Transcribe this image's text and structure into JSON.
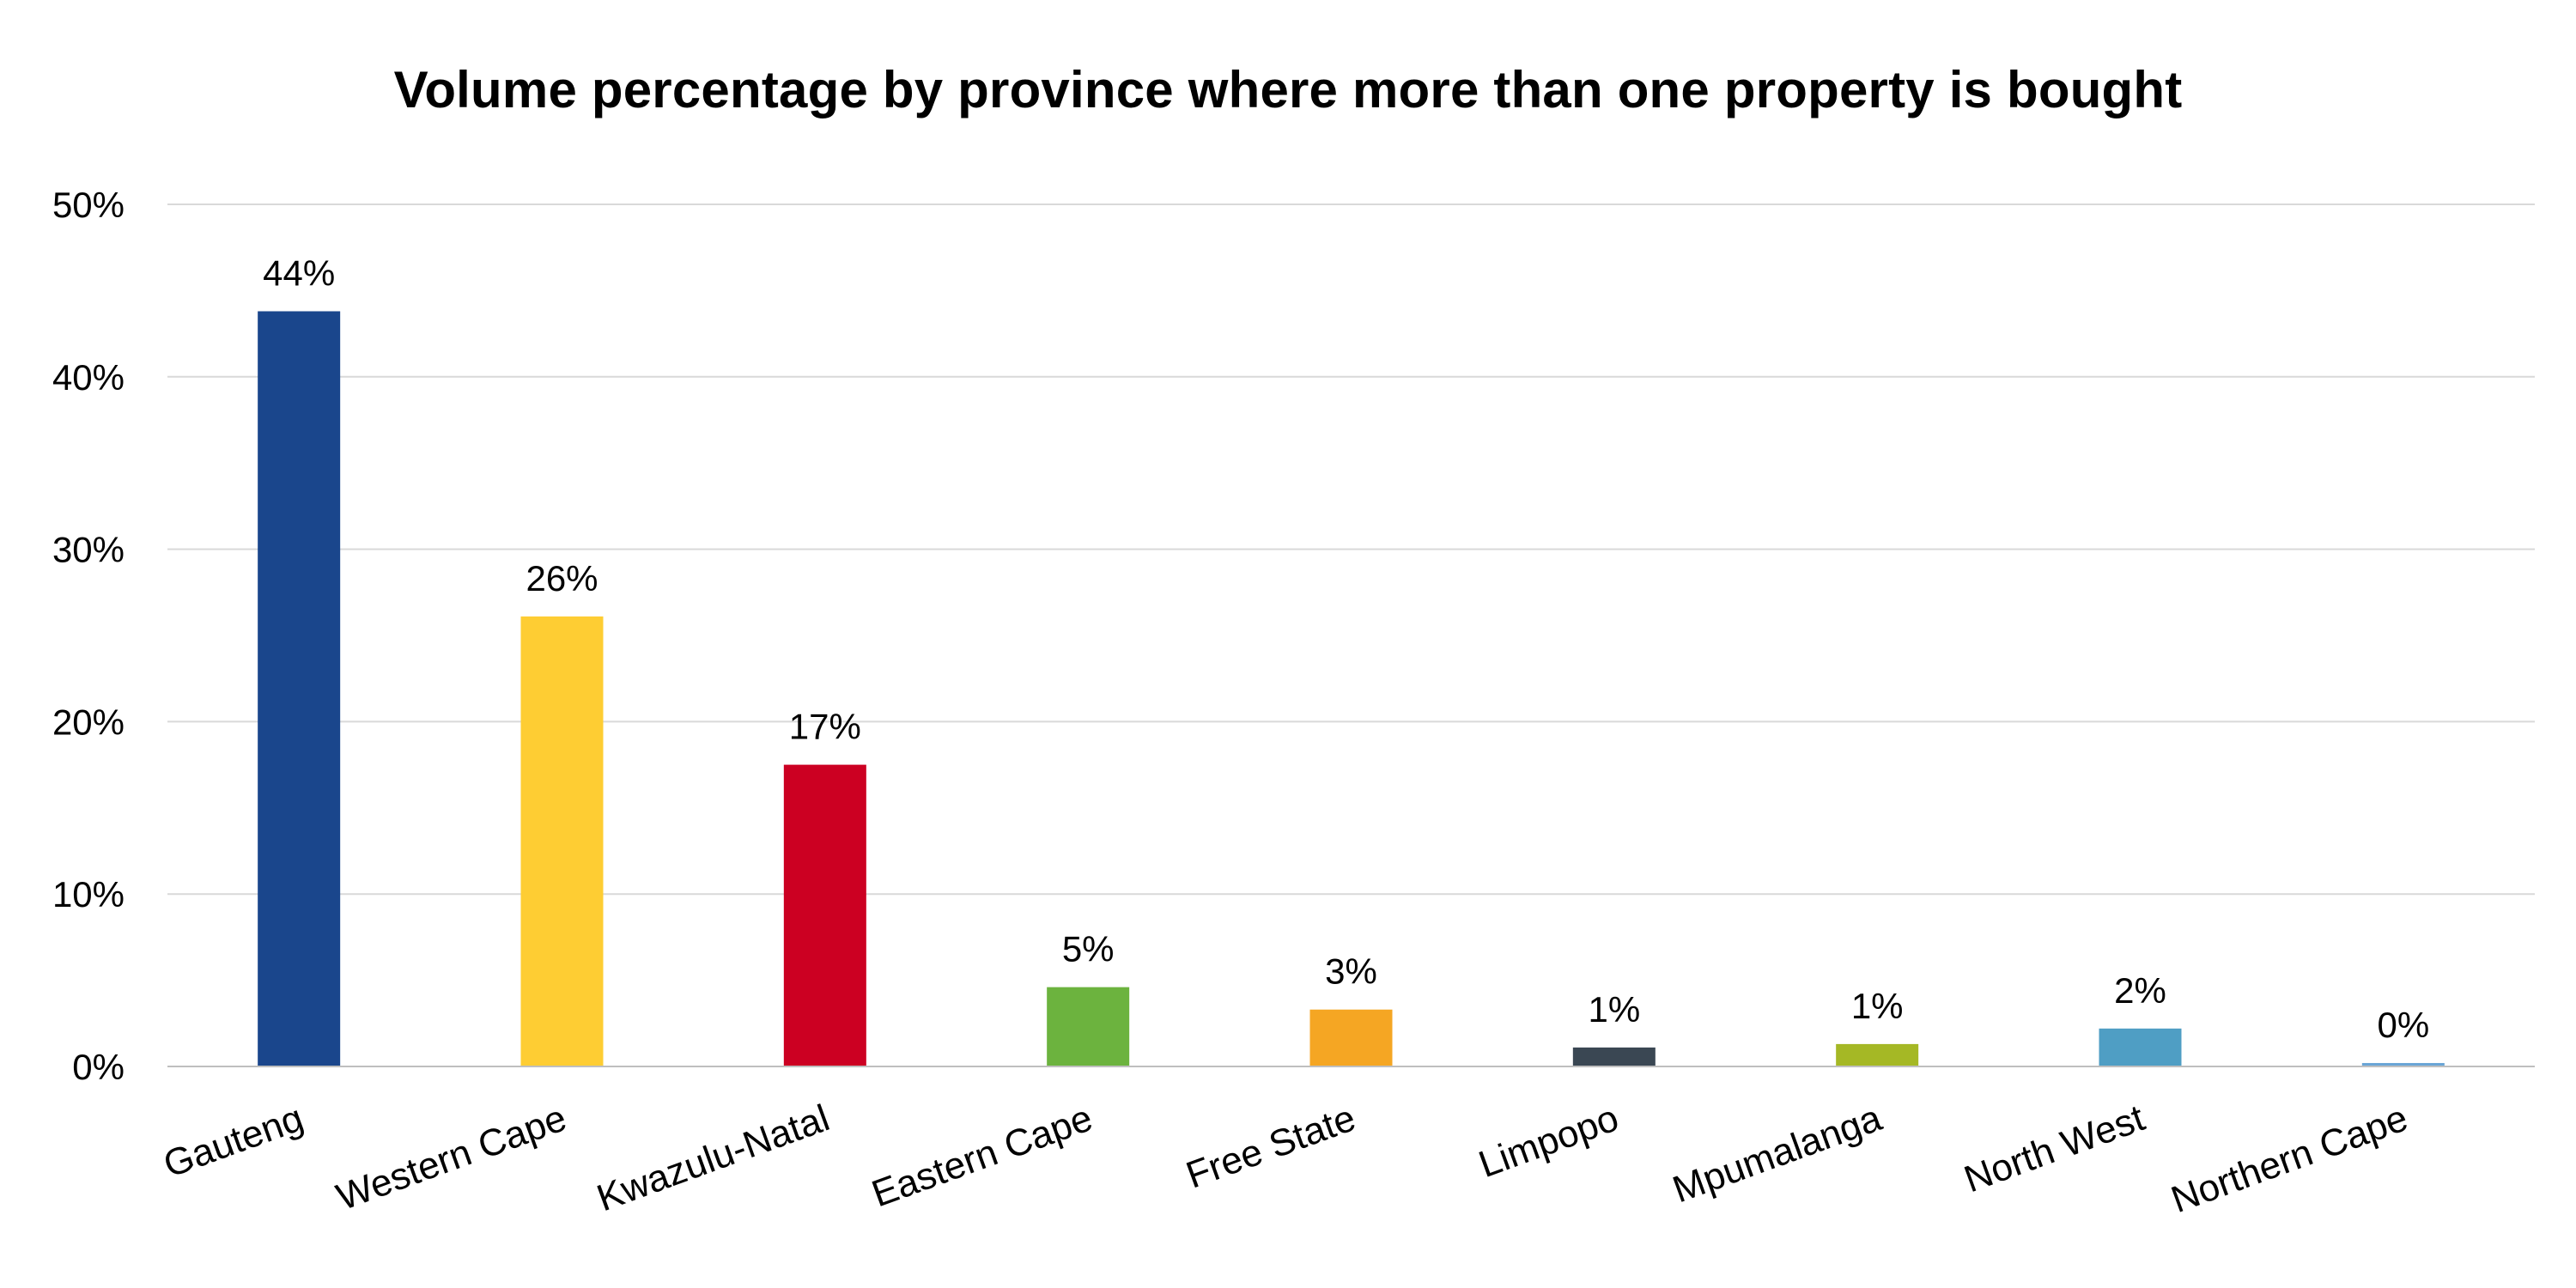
{
  "chart_data": {
    "type": "bar",
    "title": "Volume percentage by province where more than one property is bought",
    "xlabel": "",
    "ylabel": "",
    "ylim": [
      0,
      50
    ],
    "y_ticks": [
      0,
      10,
      20,
      30,
      40,
      50
    ],
    "y_tick_labels": [
      "0%",
      "10%",
      "20%",
      "30%",
      "40%",
      "50%"
    ],
    "grid": true,
    "legend": "none",
    "categories": [
      "Gauteng",
      "Western Cape",
      "Kwazulu-Natal",
      "Eastern Cape",
      "Free State",
      "Limpopo",
      "Mpumalanga",
      "North West",
      "Northern Cape"
    ],
    "values": [
      43.8,
      26.1,
      17.5,
      4.6,
      3.3,
      1.1,
      1.3,
      2.2,
      0.2
    ],
    "data_labels": [
      "44%",
      "26%",
      "17%",
      "5%",
      "3%",
      "1%",
      "1%",
      "2%",
      "0%"
    ],
    "colors": [
      "#1a468c",
      "#fecd33",
      "#cc0022",
      "#6cb33e",
      "#f5a623",
      "#3a4753",
      "#a5b825",
      "#4f9ec4",
      "#6aa5d6"
    ]
  }
}
